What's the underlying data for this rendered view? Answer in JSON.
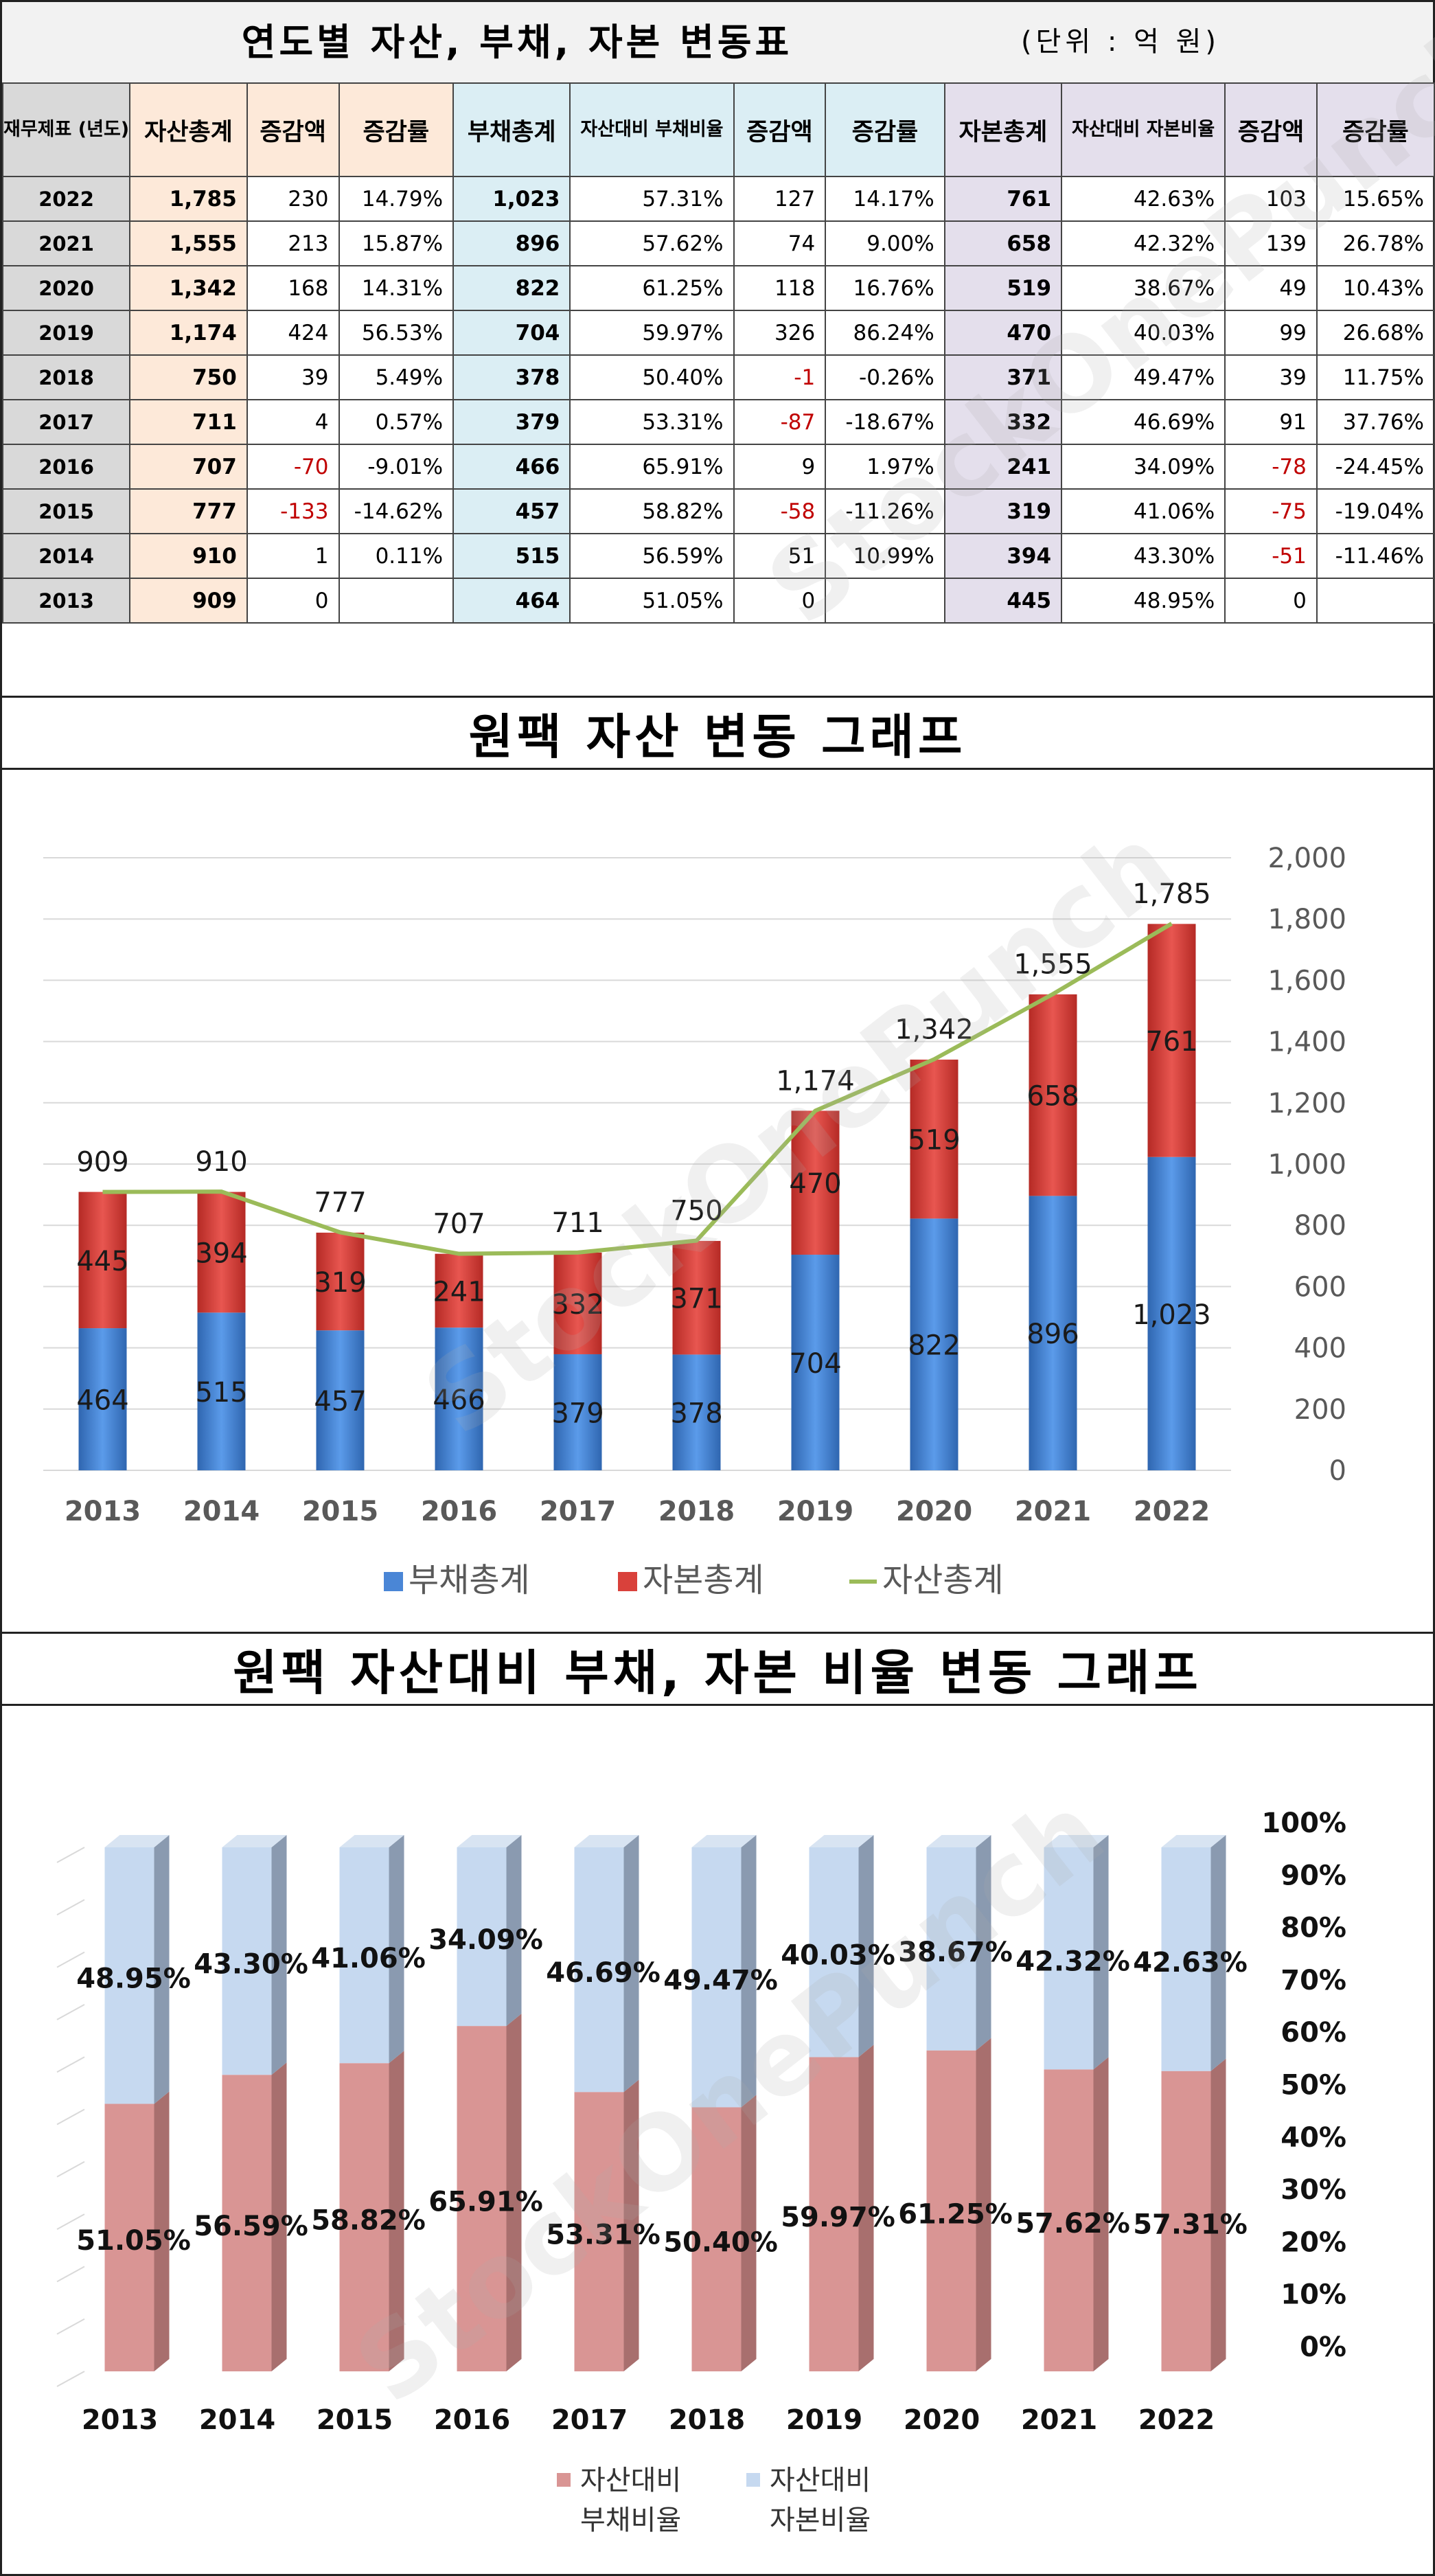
{
  "table": {
    "title": "연도별 자산, 부채, 자본 변동표",
    "unit": "(단위 : 억 원)",
    "headers": {
      "year": "재무제표 (년도)",
      "assets_total": "자산총계",
      "assets_change": "증감액",
      "assets_rate": "증감률",
      "debt_total": "부채총계",
      "debt_ratio": "자산대비 부채비율",
      "debt_change": "증감액",
      "debt_rate": "증감률",
      "equity_total": "자본총계",
      "equity_ratio": "자산대비 자본비율",
      "equity_change": "증감액",
      "equity_rate": "증감률"
    },
    "rows": [
      {
        "year": "2022",
        "assets": "1,785",
        "a_chg": "230",
        "a_rate": "14.79%",
        "debt": "1,023",
        "d_ratio": "57.31%",
        "d_chg": "127",
        "d_rate": "14.17%",
        "equity": "761",
        "e_ratio": "42.63%",
        "e_chg": "103",
        "e_rate": "15.65%"
      },
      {
        "year": "2021",
        "assets": "1,555",
        "a_chg": "213",
        "a_rate": "15.87%",
        "debt": "896",
        "d_ratio": "57.62%",
        "d_chg": "74",
        "d_rate": "9.00%",
        "equity": "658",
        "e_ratio": "42.32%",
        "e_chg": "139",
        "e_rate": "26.78%"
      },
      {
        "year": "2020",
        "assets": "1,342",
        "a_chg": "168",
        "a_rate": "14.31%",
        "debt": "822",
        "d_ratio": "61.25%",
        "d_chg": "118",
        "d_rate": "16.76%",
        "equity": "519",
        "e_ratio": "38.67%",
        "e_chg": "49",
        "e_rate": "10.43%"
      },
      {
        "year": "2019",
        "assets": "1,174",
        "a_chg": "424",
        "a_rate": "56.53%",
        "debt": "704",
        "d_ratio": "59.97%",
        "d_chg": "326",
        "d_rate": "86.24%",
        "equity": "470",
        "e_ratio": "40.03%",
        "e_chg": "99",
        "e_rate": "26.68%"
      },
      {
        "year": "2018",
        "assets": "750",
        "a_chg": "39",
        "a_rate": "5.49%",
        "debt": "378",
        "d_ratio": "50.40%",
        "d_chg": "-1",
        "d_rate": "-0.26%",
        "equity": "371",
        "e_ratio": "49.47%",
        "e_chg": "39",
        "e_rate": "11.75%"
      },
      {
        "year": "2017",
        "assets": "711",
        "a_chg": "4",
        "a_rate": "0.57%",
        "debt": "379",
        "d_ratio": "53.31%",
        "d_chg": "-87",
        "d_rate": "-18.67%",
        "equity": "332",
        "e_ratio": "46.69%",
        "e_chg": "91",
        "e_rate": "37.76%"
      },
      {
        "year": "2016",
        "assets": "707",
        "a_chg": "-70",
        "a_rate": "-9.01%",
        "debt": "466",
        "d_ratio": "65.91%",
        "d_chg": "9",
        "d_rate": "1.97%",
        "equity": "241",
        "e_ratio": "34.09%",
        "e_chg": "-78",
        "e_rate": "-24.45%"
      },
      {
        "year": "2015",
        "assets": "777",
        "a_chg": "-133",
        "a_rate": "-14.62%",
        "debt": "457",
        "d_ratio": "58.82%",
        "d_chg": "-58",
        "d_rate": "-11.26%",
        "equity": "319",
        "e_ratio": "41.06%",
        "e_chg": "-75",
        "e_rate": "-19.04%"
      },
      {
        "year": "2014",
        "assets": "910",
        "a_chg": "1",
        "a_rate": "0.11%",
        "debt": "515",
        "d_ratio": "56.59%",
        "d_chg": "51",
        "d_rate": "10.99%",
        "equity": "394",
        "e_ratio": "43.30%",
        "e_chg": "-51",
        "e_rate": "-11.46%"
      },
      {
        "year": "2013",
        "assets": "909",
        "a_chg": "0",
        "a_rate": "",
        "debt": "464",
        "d_ratio": "51.05%",
        "d_chg": "0",
        "d_rate": "",
        "equity": "445",
        "e_ratio": "48.95%",
        "e_chg": "0",
        "e_rate": ""
      }
    ]
  },
  "watermark": "StockOnePunch",
  "chart_data": [
    {
      "type": "bar",
      "title": "원팩 자산 변동 그래프",
      "categories": [
        "2013",
        "2014",
        "2015",
        "2016",
        "2017",
        "2018",
        "2019",
        "2020",
        "2021",
        "2022"
      ],
      "series": [
        {
          "name": "부채총계",
          "kind": "stacked-bar",
          "color": "#4a86d6",
          "values": [
            464,
            515,
            457,
            466,
            379,
            378,
            704,
            822,
            896,
            1023
          ],
          "labels": [
            "464",
            "515",
            "457",
            "466",
            "379",
            "378",
            "704",
            "822",
            "896",
            "1,023"
          ]
        },
        {
          "name": "자본총계",
          "kind": "stacked-bar",
          "color": "#d9413b",
          "values": [
            445,
            394,
            319,
            241,
            332,
            371,
            470,
            519,
            658,
            761
          ],
          "labels": [
            "445",
            "394",
            "319",
            "241",
            "332",
            "371",
            "470",
            "519",
            "658",
            "761"
          ]
        },
        {
          "name": "자산총계",
          "kind": "line",
          "color": "#9bbb59",
          "values": [
            909,
            910,
            777,
            707,
            711,
            750,
            1174,
            1342,
            1555,
            1785
          ],
          "labels": [
            "909",
            "910",
            "777",
            "707",
            "711",
            "750",
            "1,174",
            "1,342",
            "1,555",
            "1,785"
          ]
        }
      ],
      "ylim": [
        0,
        2000
      ],
      "y_ticks": [
        "0",
        "200",
        "400",
        "600",
        "800",
        "1,000",
        "1,200",
        "1,400",
        "1,600",
        "1,800",
        "2,000"
      ],
      "y_axis_side": "right",
      "grid": true,
      "legend": "bottom"
    },
    {
      "type": "bar",
      "title": "원팩 자산대비 부채, 자본 비율 변동 그래프",
      "stacked_percent": true,
      "style": "3d-column",
      "categories": [
        "2013",
        "2014",
        "2015",
        "2016",
        "2017",
        "2018",
        "2019",
        "2020",
        "2021",
        "2022"
      ],
      "series": [
        {
          "name": "자산대비 부채비율",
          "color": "#d99594",
          "values": [
            51.05,
            56.59,
            58.82,
            65.91,
            53.31,
            50.4,
            59.97,
            61.25,
            57.62,
            57.31
          ],
          "labels": [
            "51.05%",
            "56.59%",
            "58.82%",
            "65.91%",
            "53.31%",
            "50.40%",
            "59.97%",
            "61.25%",
            "57.62%",
            "57.31%"
          ]
        },
        {
          "name": "자산대비 자본비율",
          "color": "#c6d9f0",
          "values": [
            48.95,
            43.3,
            41.06,
            34.09,
            46.69,
            49.47,
            40.03,
            38.67,
            42.32,
            42.63
          ],
          "labels": [
            "48.95%",
            "43.30%",
            "41.06%",
            "34.09%",
            "46.69%",
            "49.47%",
            "40.03%",
            "38.67%",
            "42.32%",
            "42.63%"
          ]
        }
      ],
      "ylim": [
        0,
        100
      ],
      "y_ticks": [
        "0%",
        "10%",
        "20%",
        "30%",
        "40%",
        "50%",
        "60%",
        "70%",
        "80%",
        "90%",
        "100%"
      ],
      "y_axis_side": "right",
      "grid": true,
      "legend": "bottom"
    }
  ]
}
